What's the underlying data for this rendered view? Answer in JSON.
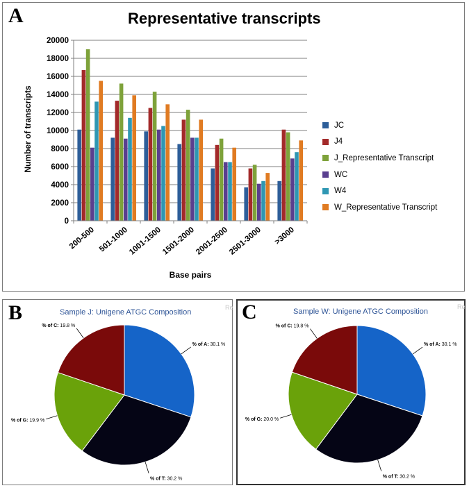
{
  "panels": {
    "a": "A",
    "b": "B",
    "c": "C"
  },
  "corner_marks": {
    "b": "Re",
    "c": "Re"
  },
  "chart_data": [
    {
      "type": "bar",
      "title": "Representative transcripts",
      "xlabel": "Base pairs",
      "ylabel": "Number of transcripts",
      "ylim": [
        0,
        20000
      ],
      "yticks": [
        "0",
        "2000",
        "4000",
        "6000",
        "8000",
        "10000",
        "12000",
        "14000",
        "16000",
        "18000",
        "20000"
      ],
      "grid": true,
      "legend_position": "right",
      "categories": [
        "200-500",
        "501-1000",
        "1001-1500",
        "1501-2000",
        "2001-2500",
        "2501-3000",
        ">3000"
      ],
      "series": [
        {
          "name": "JC",
          "color": "#2d5e99",
          "values": [
            10100,
            9200,
            9900,
            8500,
            5800,
            3700,
            4400
          ]
        },
        {
          "name": "J4",
          "color": "#a32a2a",
          "values": [
            16700,
            13300,
            12500,
            11200,
            8400,
            5800,
            10100
          ]
        },
        {
          "name": "J_Representative Transcript",
          "color": "#7ea23a",
          "values": [
            19000,
            15200,
            14300,
            12300,
            9100,
            6200,
            9800
          ]
        },
        {
          "name": "WC",
          "color": "#5a3f8f",
          "values": [
            8100,
            9100,
            10100,
            9200,
            6500,
            4100,
            6900
          ]
        },
        {
          "name": "W4",
          "color": "#2f97b3",
          "values": [
            13200,
            11400,
            10500,
            9200,
            6500,
            4400,
            7600
          ]
        },
        {
          "name": "W_Representative Transcript",
          "color": "#e07b22",
          "values": [
            15500,
            13900,
            12900,
            11200,
            8100,
            5300,
            8900
          ]
        }
      ]
    },
    {
      "type": "pie",
      "title": "Sample J: Unigene ATGC Composition",
      "slices": [
        {
          "name": "% of A",
          "label": "% of A: 30.1 %",
          "value": 30.1,
          "color": "#1564c8"
        },
        {
          "name": "% of T",
          "label": "% of T: 30.2 %",
          "value": 30.2,
          "color": "#050515"
        },
        {
          "name": "% of G",
          "label": "% of G: 19.9 %",
          "value": 19.9,
          "color": "#6aa20a"
        },
        {
          "name": "% of C",
          "label": "% of C: 19.8 %",
          "value": 19.8,
          "color": "#7a0a0a"
        }
      ]
    },
    {
      "type": "pie",
      "title": "Sample W: Unigene ATGC Composition",
      "slices": [
        {
          "name": "% of A",
          "label": "% of A: 30.1 %",
          "value": 30.1,
          "color": "#1564c8"
        },
        {
          "name": "% of T",
          "label": "% of T: 30.2 %",
          "value": 30.2,
          "color": "#050515"
        },
        {
          "name": "% of G",
          "label": "% of G: 20.0 %",
          "value": 20.0,
          "color": "#6aa20a"
        },
        {
          "name": "% of C",
          "label": "% of C: 19.8 %",
          "value": 19.8,
          "color": "#7a0a0a"
        }
      ]
    }
  ]
}
